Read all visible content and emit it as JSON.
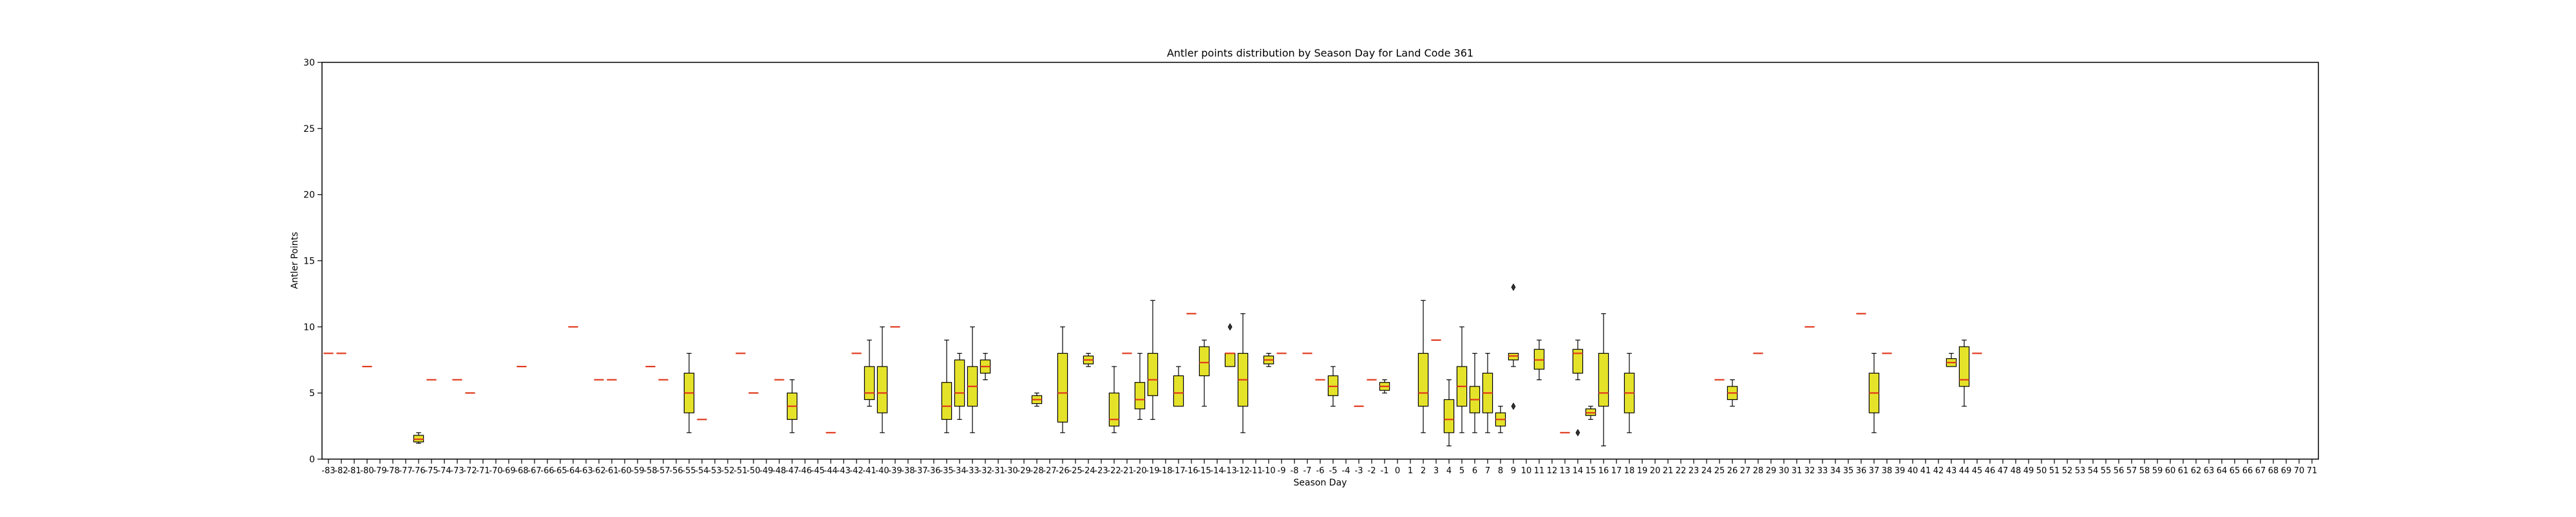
{
  "chart_data": {
    "type": "box",
    "title": "Antler points distribution by Season Day for Land Code 361",
    "xlabel": "Season Day",
    "ylabel": "Antler Points",
    "ylim": [
      0,
      30
    ],
    "yticks": [
      0,
      5,
      10,
      15,
      20,
      25,
      30
    ],
    "categories": [
      "-83",
      "-82",
      "-81",
      "-80",
      "-79",
      "-78",
      "-77",
      "-76",
      "-75",
      "-74",
      "-73",
      "-72",
      "-71",
      "-70",
      "-69",
      "-68",
      "-67",
      "-66",
      "-65",
      "-64",
      "-63",
      "-62",
      "-61",
      "-60",
      "-59",
      "-58",
      "-57",
      "-56",
      "-55",
      "-54",
      "-53",
      "-52",
      "-51",
      "-50",
      "-49",
      "-48",
      "-47",
      "-46",
      "-45",
      "-44",
      "-43",
      "-42",
      "-41",
      "-40",
      "-39",
      "-38",
      "-37",
      "-36",
      "-35",
      "-34",
      "-33",
      "-32",
      "-31",
      "-30",
      "-29",
      "-28",
      "-27",
      "-26",
      "-25",
      "-24",
      "-23",
      "-22",
      "-21",
      "-20",
      "-19",
      "-18",
      "-17",
      "-16",
      "-15",
      "-14",
      "-13",
      "-12",
      "-11",
      "-10",
      "-9",
      "-8",
      "-7",
      "-6",
      "-5",
      "-4",
      "-3",
      "-2",
      "-1",
      "0",
      "1",
      "2",
      "3",
      "4",
      "5",
      "6",
      "7",
      "8",
      "9",
      "10",
      "11",
      "12",
      "13",
      "14",
      "15",
      "16",
      "17",
      "18",
      "19",
      "20",
      "21",
      "22",
      "23",
      "24",
      "25",
      "26",
      "27",
      "28",
      "29",
      "30",
      "31",
      "32",
      "33",
      "34",
      "35",
      "36",
      "37",
      "38",
      "39",
      "40",
      "41",
      "42",
      "43",
      "44",
      "45",
      "46",
      "47",
      "48",
      "49",
      "50",
      "51",
      "52",
      "53",
      "54",
      "55",
      "56",
      "57",
      "58",
      "59",
      "60",
      "61",
      "62",
      "63",
      "64",
      "65",
      "66",
      "67",
      "68",
      "69",
      "70",
      "71"
    ],
    "box_color": "#e5e22a",
    "median_color": "#e03a1e",
    "boxes": [
      {
        "x": "-83",
        "min": 8,
        "q1": 8,
        "median": 8,
        "q3": 8,
        "max": 8
      },
      {
        "x": "-82",
        "min": 8,
        "q1": 8,
        "median": 8,
        "q3": 8,
        "max": 8
      },
      {
        "x": "-80",
        "min": 7,
        "q1": 7,
        "median": 7,
        "q3": 7,
        "max": 7
      },
      {
        "x": "-76",
        "min": 1.2,
        "q1": 1.3,
        "median": 1.5,
        "q3": 1.8,
        "max": 2
      },
      {
        "x": "-75",
        "min": 6,
        "q1": 6,
        "median": 6,
        "q3": 6,
        "max": 6
      },
      {
        "x": "-73",
        "min": 6,
        "q1": 6,
        "median": 6,
        "q3": 6,
        "max": 6
      },
      {
        "x": "-72",
        "min": 5,
        "q1": 5,
        "median": 5,
        "q3": 5,
        "max": 5
      },
      {
        "x": "-68",
        "min": 7,
        "q1": 7,
        "median": 7,
        "q3": 7,
        "max": 7
      },
      {
        "x": "-64",
        "min": 10,
        "q1": 10,
        "median": 10,
        "q3": 10,
        "max": 10
      },
      {
        "x": "-62",
        "min": 6,
        "q1": 6,
        "median": 6,
        "q3": 6,
        "max": 6
      },
      {
        "x": "-61",
        "min": 6,
        "q1": 6,
        "median": 6,
        "q3": 6,
        "max": 6
      },
      {
        "x": "-58",
        "min": 7,
        "q1": 7,
        "median": 7,
        "q3": 7,
        "max": 7
      },
      {
        "x": "-57",
        "min": 6,
        "q1": 6,
        "median": 6,
        "q3": 6,
        "max": 6
      },
      {
        "x": "-55",
        "min": 2,
        "q1": 3.5,
        "median": 5,
        "q3": 6.5,
        "max": 8
      },
      {
        "x": "-54",
        "min": 3,
        "q1": 3,
        "median": 3,
        "q3": 3,
        "max": 3
      },
      {
        "x": "-51",
        "min": 8,
        "q1": 8,
        "median": 8,
        "q3": 8,
        "max": 8
      },
      {
        "x": "-50",
        "min": 5,
        "q1": 5,
        "median": 5,
        "q3": 5,
        "max": 5
      },
      {
        "x": "-48",
        "min": 6,
        "q1": 6,
        "median": 6,
        "q3": 6,
        "max": 6
      },
      {
        "x": "-47",
        "min": 2,
        "q1": 3,
        "median": 4,
        "q3": 5,
        "max": 6
      },
      {
        "x": "-44",
        "min": 2,
        "q1": 2,
        "median": 2,
        "q3": 2,
        "max": 2
      },
      {
        "x": "-42",
        "min": 8,
        "q1": 8,
        "median": 8,
        "q3": 8,
        "max": 8
      },
      {
        "x": "-41",
        "min": 4,
        "q1": 4.5,
        "median": 5,
        "q3": 7,
        "max": 9
      },
      {
        "x": "-40",
        "min": 2,
        "q1": 3.5,
        "median": 5,
        "q3": 7,
        "max": 10
      },
      {
        "x": "-39",
        "min": 10,
        "q1": 10,
        "median": 10,
        "q3": 10,
        "max": 10
      },
      {
        "x": "-35",
        "min": 2,
        "q1": 3,
        "median": 4,
        "q3": 5.8,
        "max": 9
      },
      {
        "x": "-34",
        "min": 3,
        "q1": 4,
        "median": 5,
        "q3": 7.5,
        "max": 8
      },
      {
        "x": "-33",
        "min": 2,
        "q1": 4,
        "median": 5.5,
        "q3": 7,
        "max": 10
      },
      {
        "x": "-32",
        "min": 6,
        "q1": 6.5,
        "median": 7,
        "q3": 7.5,
        "max": 8
      },
      {
        "x": "-28",
        "min": 4,
        "q1": 4.2,
        "median": 4.5,
        "q3": 4.8,
        "max": 5
      },
      {
        "x": "-26",
        "min": 2,
        "q1": 2.8,
        "median": 5,
        "q3": 8,
        "max": 10
      },
      {
        "x": "-24",
        "min": 7,
        "q1": 7.2,
        "median": 7.5,
        "q3": 7.8,
        "max": 8
      },
      {
        "x": "-22",
        "min": 2,
        "q1": 2.5,
        "median": 3,
        "q3": 5,
        "max": 7
      },
      {
        "x": "-21",
        "min": 8,
        "q1": 8,
        "median": 8,
        "q3": 8,
        "max": 8
      },
      {
        "x": "-20",
        "min": 3,
        "q1": 3.8,
        "median": 4.5,
        "q3": 5.8,
        "max": 8
      },
      {
        "x": "-19",
        "min": 3,
        "q1": 4.8,
        "median": 6,
        "q3": 8,
        "max": 12
      },
      {
        "x": "-17",
        "min": 4,
        "q1": 4,
        "median": 5,
        "q3": 6.3,
        "max": 7
      },
      {
        "x": "-16",
        "min": 11,
        "q1": 11,
        "median": 11,
        "q3": 11,
        "max": 11
      },
      {
        "x": "-15",
        "min": 4,
        "q1": 6.3,
        "median": 7.3,
        "q3": 8.5,
        "max": 9
      },
      {
        "x": "-13",
        "min": 7,
        "q1": 7,
        "median": 8,
        "q3": 8,
        "max": 8,
        "outliers": [
          10
        ]
      },
      {
        "x": "-12",
        "min": 2,
        "q1": 4,
        "median": 6,
        "q3": 8,
        "max": 11
      },
      {
        "x": "-10",
        "min": 7,
        "q1": 7.2,
        "median": 7.5,
        "q3": 7.8,
        "max": 8
      },
      {
        "x": "-9",
        "min": 8,
        "q1": 8,
        "median": 8,
        "q3": 8,
        "max": 8
      },
      {
        "x": "-7",
        "min": 8,
        "q1": 8,
        "median": 8,
        "q3": 8,
        "max": 8
      },
      {
        "x": "-6",
        "min": 6,
        "q1": 6,
        "median": 6,
        "q3": 6,
        "max": 6
      },
      {
        "x": "-5",
        "min": 4,
        "q1": 4.8,
        "median": 5.5,
        "q3": 6.3,
        "max": 7
      },
      {
        "x": "-3",
        "min": 4,
        "q1": 4,
        "median": 4,
        "q3": 4,
        "max": 4
      },
      {
        "x": "-2",
        "min": 6,
        "q1": 6,
        "median": 6,
        "q3": 6,
        "max": 6
      },
      {
        "x": "-1",
        "min": 5,
        "q1": 5.2,
        "median": 5.5,
        "q3": 5.8,
        "max": 6
      },
      {
        "x": "2",
        "min": 2,
        "q1": 4,
        "median": 5,
        "q3": 8,
        "max": 12
      },
      {
        "x": "3",
        "min": 9,
        "q1": 9,
        "median": 9,
        "q3": 9,
        "max": 9
      },
      {
        "x": "4",
        "min": 1,
        "q1": 2,
        "median": 3,
        "q3": 4.5,
        "max": 6
      },
      {
        "x": "5",
        "min": 2,
        "q1": 4,
        "median": 5.5,
        "q3": 7,
        "max": 10
      },
      {
        "x": "6",
        "min": 2,
        "q1": 3.5,
        "median": 4.5,
        "q3": 5.5,
        "max": 8
      },
      {
        "x": "7",
        "min": 2,
        "q1": 3.5,
        "median": 5,
        "q3": 6.5,
        "max": 8
      },
      {
        "x": "8",
        "min": 2,
        "q1": 2.5,
        "median": 3,
        "q3": 3.5,
        "max": 4
      },
      {
        "x": "9",
        "min": 7,
        "q1": 7.5,
        "median": 7.8,
        "q3": 8,
        "max": 8,
        "outliers": [
          13,
          4
        ]
      },
      {
        "x": "11",
        "min": 6,
        "q1": 6.8,
        "median": 7.5,
        "q3": 8.3,
        "max": 9
      },
      {
        "x": "13",
        "min": 2,
        "q1": 2,
        "median": 2,
        "q3": 2,
        "max": 2
      },
      {
        "x": "14",
        "min": 6,
        "q1": 6.5,
        "median": 8,
        "q3": 8.3,
        "max": 9,
        "outliers": [
          2
        ]
      },
      {
        "x": "15",
        "min": 3,
        "q1": 3.3,
        "median": 3.5,
        "q3": 3.8,
        "max": 4
      },
      {
        "x": "16",
        "min": 1,
        "q1": 4,
        "median": 5,
        "q3": 8,
        "max": 11
      },
      {
        "x": "18",
        "min": 2,
        "q1": 3.5,
        "median": 5,
        "q3": 6.5,
        "max": 8
      },
      {
        "x": "25",
        "min": 6,
        "q1": 6,
        "median": 6,
        "q3": 6,
        "max": 6
      },
      {
        "x": "26",
        "min": 4,
        "q1": 4.5,
        "median": 5,
        "q3": 5.5,
        "max": 6
      },
      {
        "x": "28",
        "min": 8,
        "q1": 8,
        "median": 8,
        "q3": 8,
        "max": 8
      },
      {
        "x": "32",
        "min": 10,
        "q1": 10,
        "median": 10,
        "q3": 10,
        "max": 10
      },
      {
        "x": "36",
        "min": 11,
        "q1": 11,
        "median": 11,
        "q3": 11,
        "max": 11
      },
      {
        "x": "37",
        "min": 2,
        "q1": 3.5,
        "median": 5,
        "q3": 6.5,
        "max": 8
      },
      {
        "x": "38",
        "min": 8,
        "q1": 8,
        "median": 8,
        "q3": 8,
        "max": 8
      },
      {
        "x": "43",
        "min": 7,
        "q1": 7,
        "median": 7.3,
        "q3": 7.6,
        "max": 8
      },
      {
        "x": "44",
        "min": 4,
        "q1": 5.5,
        "median": 6,
        "q3": 8.5,
        "max": 9
      },
      {
        "x": "45",
        "min": 8,
        "q1": 8,
        "median": 8,
        "q3": 8,
        "max": 8
      }
    ]
  }
}
